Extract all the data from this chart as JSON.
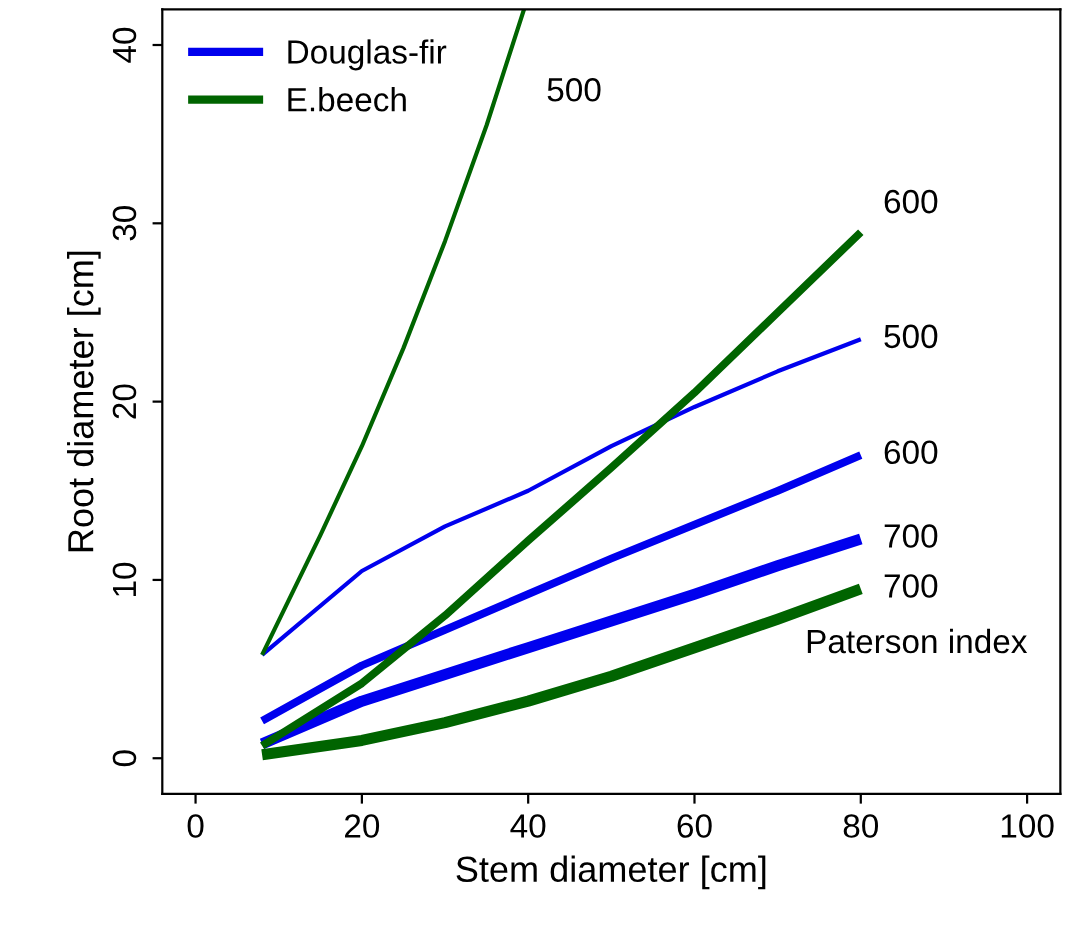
{
  "chart_data": {
    "type": "line",
    "xlabel": "Stem diameter [cm]",
    "ylabel": "Root diameter [cm]",
    "xlim": [
      -4,
      104
    ],
    "ylim": [
      -2,
      42
    ],
    "xticks": [
      0,
      20,
      40,
      60,
      80,
      100
    ],
    "yticks": [
      0,
      10,
      20,
      30,
      40
    ],
    "grid": false,
    "legend": "top left",
    "marker": "none",
    "line_style": "solid",
    "series": [
      {
        "name": "Douglas-fir",
        "color": "#0000ee",
        "x": [
          8,
          20,
          30,
          40,
          50,
          60,
          70,
          80
        ],
        "values": [
          5.8,
          10.5,
          13,
          15,
          17.5,
          19.7,
          21.7,
          23.5
        ]
      },
      {
        "color": "#0000ee",
        "x": [
          8,
          20,
          30,
          40,
          50,
          60,
          70,
          80
        ],
        "values": [
          2.1,
          5.2,
          7.2,
          9.2,
          11.2,
          13.1,
          15,
          17
        ]
      },
      {
        "color": "#0000ee",
        "x": [
          8,
          20,
          30,
          40,
          50,
          60,
          70,
          80
        ],
        "values": [
          0.8,
          3.2,
          4.7,
          6.2,
          7.7,
          9.2,
          10.8,
          12.3
        ]
      },
      {
        "name": "E.beech",
        "color": "#006400",
        "x": [
          8,
          15,
          20,
          25,
          30,
          35,
          39.5
        ],
        "values": [
          5.8,
          12.5,
          17.5,
          23,
          29,
          35.5,
          42
        ]
      },
      {
        "color": "#006400",
        "x": [
          8,
          20,
          30,
          40,
          50,
          60,
          70,
          80
        ],
        "values": [
          0.7,
          4.2,
          8,
          12.2,
          16.3,
          20.5,
          25,
          29.5
        ]
      },
      {
        "color": "#006400",
        "x": [
          8,
          20,
          30,
          40,
          50,
          60,
          70,
          80
        ],
        "values": [
          0.2,
          1,
          2,
          3.2,
          4.6,
          6.2,
          7.8,
          9.5
        ]
      }
    ],
    "annotations": [
      "500",
      "600",
      "700",
      "500",
      "600",
      "700",
      "Paterson index"
    ]
  }
}
